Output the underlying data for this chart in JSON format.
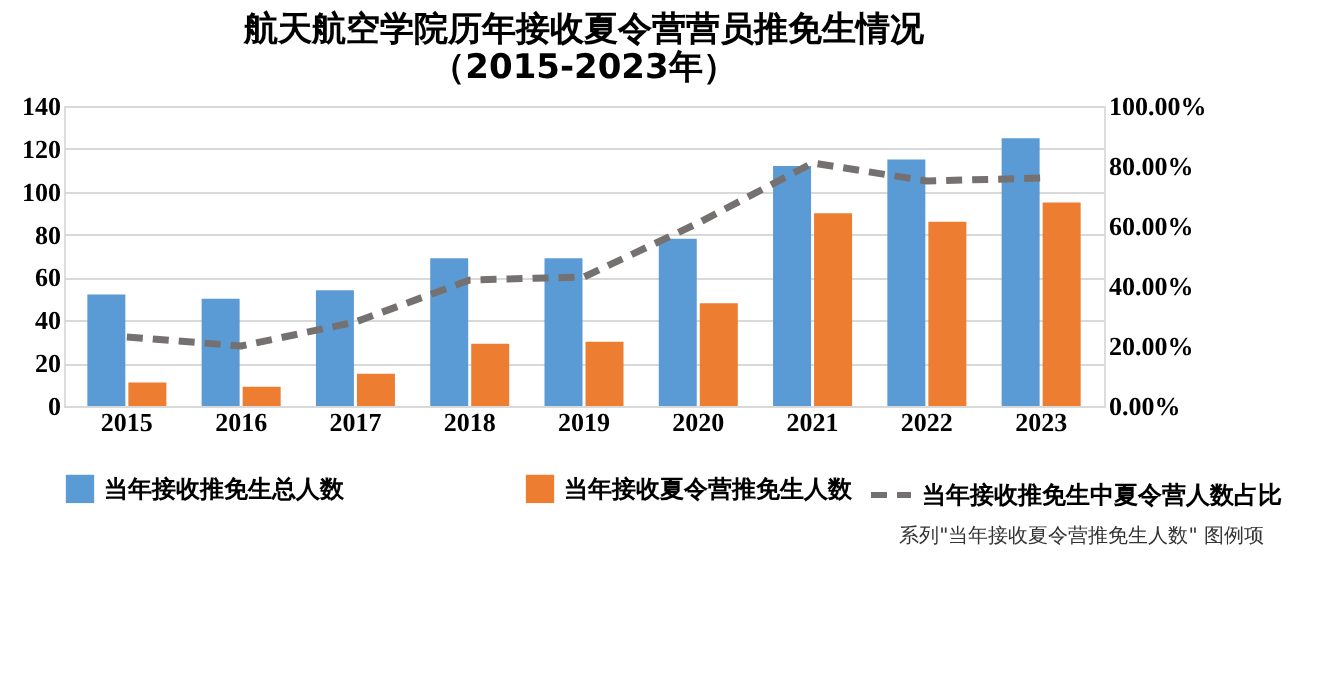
{
  "chart_data": {
    "type": "bar",
    "title": [
      "航天航空学院历年接收夏令营营员推免生情况",
      "（2015-2023年）"
    ],
    "categories": [
      "2015",
      "2016",
      "2017",
      "2018",
      "2019",
      "2020",
      "2021",
      "2022",
      "2023"
    ],
    "series": [
      {
        "name": "当年接收推免生总人数",
        "color": "#5b9bd5",
        "values": [
          52,
          50,
          54,
          69,
          69,
          78,
          112,
          115,
          125
        ]
      },
      {
        "name": "当年接收夏令营推免生人数",
        "color": "#ed7d31",
        "values": [
          11,
          9,
          15,
          29,
          30,
          48,
          90,
          86,
          95
        ]
      },
      {
        "name": "当年接收推免生中夏令营人数占比",
        "type": "line",
        "axis": "y2",
        "color": "#767171",
        "line_style": "dashed",
        "values": [
          23,
          20,
          28,
          42,
          43,
          61,
          81,
          75,
          76
        ]
      }
    ],
    "ylim": [
      0,
      140
    ],
    "yticks": [
      0,
      20,
      40,
      60,
      80,
      100,
      120,
      140
    ],
    "y2lim": [
      0,
      100
    ],
    "y2ticks": [
      {
        "value": 0,
        "label": "0.00%"
      },
      {
        "value": 20,
        "label": "20.00%"
      },
      {
        "value": 40,
        "label": "40.00%"
      },
      {
        "value": 60,
        "label": "60.00%"
      },
      {
        "value": 80,
        "label": "80.00%"
      },
      {
        "value": 100,
        "label": "100.00%"
      }
    ],
    "grid": "y",
    "legend": "bottom",
    "annotations": [
      "系列\"当年接收夏令营推免生人数\" 图例项"
    ]
  }
}
